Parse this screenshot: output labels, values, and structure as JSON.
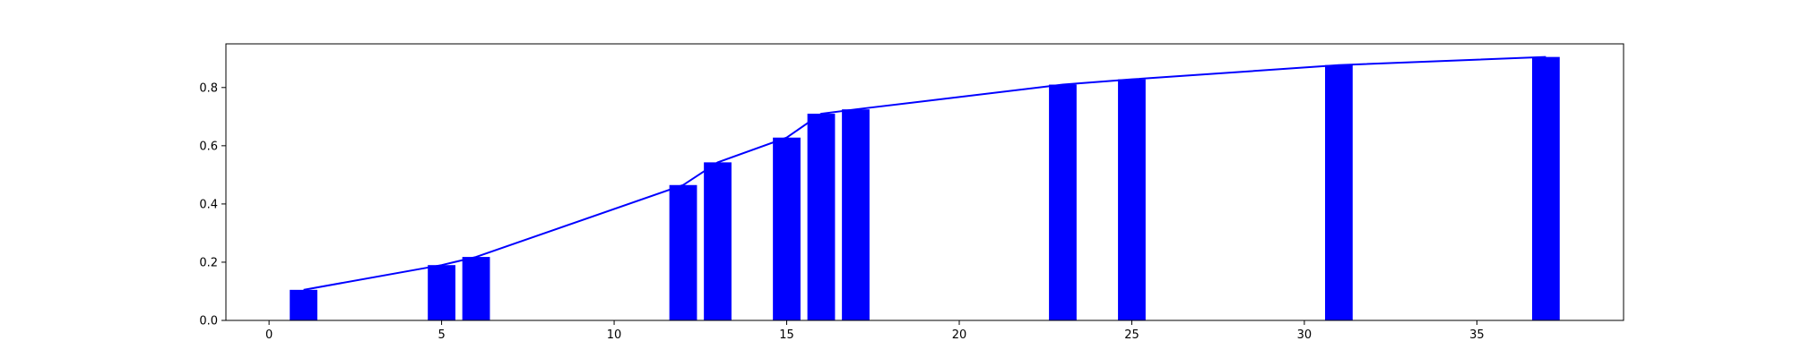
{
  "chart_data": {
    "type": "bar",
    "title": "",
    "xlabel": "",
    "ylabel": "",
    "xlim": [
      -1.25,
      39.25
    ],
    "ylim": [
      0.0,
      0.95
    ],
    "x_ticks": [
      0,
      5,
      10,
      15,
      20,
      25,
      30,
      35
    ],
    "x_tick_labels": [
      "0",
      "5",
      "10",
      "15",
      "20",
      "25",
      "30",
      "35"
    ],
    "y_ticks": [
      0.0,
      0.2,
      0.4,
      0.6,
      0.8
    ],
    "y_tick_labels": [
      "0.0",
      "0.2",
      "0.4",
      "0.6",
      "0.8"
    ],
    "grid": false,
    "bar_color": "#0000ff",
    "line_color": "#0000ff",
    "series": [
      {
        "name": "bars",
        "type": "bar",
        "x": [
          1,
          5,
          6,
          12,
          13,
          15,
          16,
          17,
          23,
          25,
          31,
          37
        ],
        "values": [
          0.105,
          0.19,
          0.218,
          0.465,
          0.543,
          0.628,
          0.71,
          0.725,
          0.81,
          0.828,
          0.877,
          0.905
        ]
      },
      {
        "name": "line",
        "type": "line",
        "x": [
          1,
          5,
          6,
          12,
          13,
          15,
          16,
          17,
          23,
          25,
          31,
          37
        ],
        "values": [
          0.105,
          0.19,
          0.218,
          0.465,
          0.543,
          0.628,
          0.71,
          0.725,
          0.81,
          0.828,
          0.877,
          0.905
        ]
      }
    ]
  }
}
